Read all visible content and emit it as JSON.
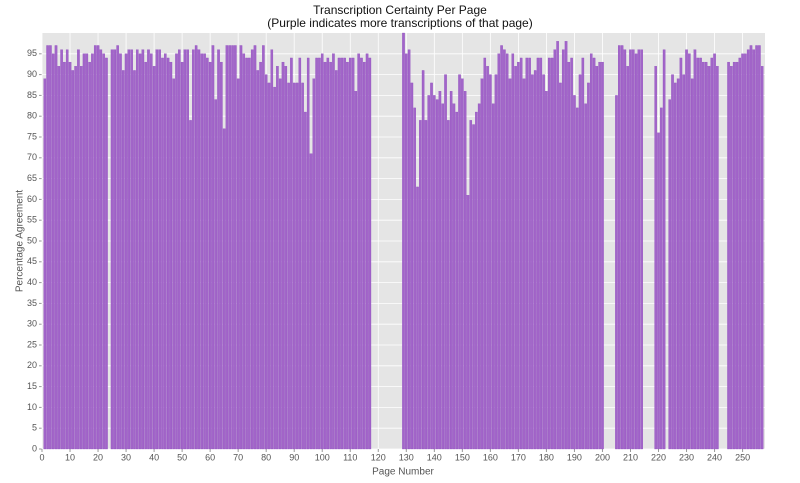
{
  "chart_data": {
    "type": "bar",
    "title": "Transcription Certainty Per Page",
    "subtitle": "(Purple indicates more transcriptions of that page)",
    "x_label": "Page Number",
    "y_label": "Percentage Agreement",
    "color": "#a265c9",
    "grid": true,
    "xlim": [
      0,
      258
    ],
    "ylim": [
      0,
      100
    ],
    "xticks": [
      0,
      10,
      20,
      30,
      40,
      50,
      60,
      70,
      80,
      90,
      100,
      110,
      120,
      130,
      140,
      150,
      160,
      170,
      180,
      190,
      200,
      210,
      220,
      230,
      240,
      250
    ],
    "yticks": [
      0,
      5,
      10,
      15,
      20,
      25,
      30,
      35,
      40,
      45,
      50,
      55,
      60,
      65,
      70,
      75,
      80,
      85,
      90,
      95
    ],
    "x": [
      1,
      2,
      3,
      4,
      5,
      6,
      7,
      8,
      9,
      10,
      11,
      12,
      13,
      14,
      15,
      16,
      17,
      18,
      19,
      20,
      21,
      22,
      23,
      25,
      26,
      27,
      28,
      29,
      30,
      31,
      32,
      33,
      34,
      35,
      36,
      37,
      38,
      39,
      40,
      41,
      42,
      43,
      44,
      45,
      46,
      47,
      48,
      49,
      50,
      51,
      52,
      53,
      54,
      55,
      56,
      57,
      58,
      59,
      60,
      61,
      62,
      63,
      64,
      65,
      66,
      67,
      68,
      69,
      70,
      71,
      72,
      73,
      74,
      75,
      76,
      77,
      78,
      79,
      80,
      81,
      82,
      83,
      84,
      85,
      86,
      87,
      88,
      89,
      90,
      91,
      92,
      93,
      94,
      95,
      96,
      97,
      98,
      99,
      100,
      101,
      102,
      103,
      104,
      105,
      106,
      107,
      108,
      109,
      110,
      111,
      112,
      113,
      114,
      115,
      116,
      117,
      129,
      130,
      131,
      132,
      133,
      134,
      135,
      136,
      137,
      138,
      139,
      140,
      141,
      142,
      143,
      144,
      145,
      146,
      147,
      148,
      149,
      150,
      151,
      152,
      153,
      154,
      155,
      156,
      157,
      158,
      159,
      160,
      161,
      162,
      163,
      164,
      165,
      166,
      167,
      168,
      169,
      170,
      171,
      172,
      173,
      174,
      175,
      176,
      177,
      178,
      179,
      180,
      181,
      182,
      183,
      184,
      185,
      186,
      187,
      188,
      189,
      190,
      191,
      192,
      193,
      194,
      195,
      196,
      197,
      198,
      199,
      200,
      205,
      206,
      207,
      208,
      209,
      210,
      211,
      212,
      213,
      214,
      219,
      220,
      221,
      222,
      224,
      225,
      226,
      227,
      228,
      229,
      230,
      231,
      232,
      233,
      234,
      235,
      236,
      237,
      238,
      239,
      240,
      241,
      245,
      246,
      247,
      248,
      249,
      250,
      251,
      252,
      253,
      254,
      255,
      256,
      257
    ],
    "values": [
      89,
      97,
      97,
      95,
      97,
      92,
      96,
      93,
      96,
      93,
      91,
      92,
      96,
      92,
      95,
      95,
      93,
      95,
      97,
      97,
      96,
      95,
      94,
      96,
      96,
      97,
      95,
      91,
      95,
      96,
      96,
      91,
      96,
      95,
      96,
      93,
      96,
      95,
      92,
      96,
      96,
      94,
      95,
      94,
      93,
      89,
      95,
      96,
      93,
      96,
      96,
      79,
      96,
      97,
      96,
      95,
      95,
      94,
      93,
      97,
      84,
      96,
      93,
      77,
      97,
      97,
      97,
      97,
      89,
      97,
      95,
      94,
      94,
      96,
      97,
      91,
      93,
      97,
      90,
      88,
      96,
      87,
      92,
      89,
      93,
      92,
      88,
      94,
      88,
      88,
      94,
      88,
      81,
      94,
      71,
      89,
      94,
      94,
      95,
      93,
      94,
      93,
      95,
      91,
      94,
      94,
      94,
      93,
      94,
      94,
      86,
      95,
      94,
      93,
      95,
      94,
      100,
      95,
      96,
      88,
      82,
      63,
      79,
      91,
      79,
      85,
      88,
      85,
      84,
      86,
      83,
      90,
      79,
      86,
      83,
      81,
      90,
      89,
      86,
      61,
      79,
      78,
      81,
      83,
      89,
      94,
      92,
      90,
      83,
      90,
      95,
      97,
      96,
      95,
      89,
      95,
      92,
      93,
      94,
      89,
      94,
      94,
      90,
      91,
      94,
      94,
      90,
      86,
      94,
      94,
      96,
      98,
      88,
      96,
      98,
      93,
      94,
      85,
      82,
      90,
      94,
      83,
      88,
      95,
      94,
      92,
      93,
      93,
      85,
      97,
      97,
      96,
      92,
      96,
      96,
      95,
      96,
      96,
      92,
      76,
      82,
      96,
      84,
      90,
      88,
      89,
      94,
      90,
      96,
      95,
      89,
      96,
      94,
      94,
      93,
      93,
      92,
      94,
      95,
      92,
      93,
      92,
      93,
      93,
      94,
      95,
      95,
      96,
      97,
      96,
      97,
      97,
      92
    ]
  }
}
